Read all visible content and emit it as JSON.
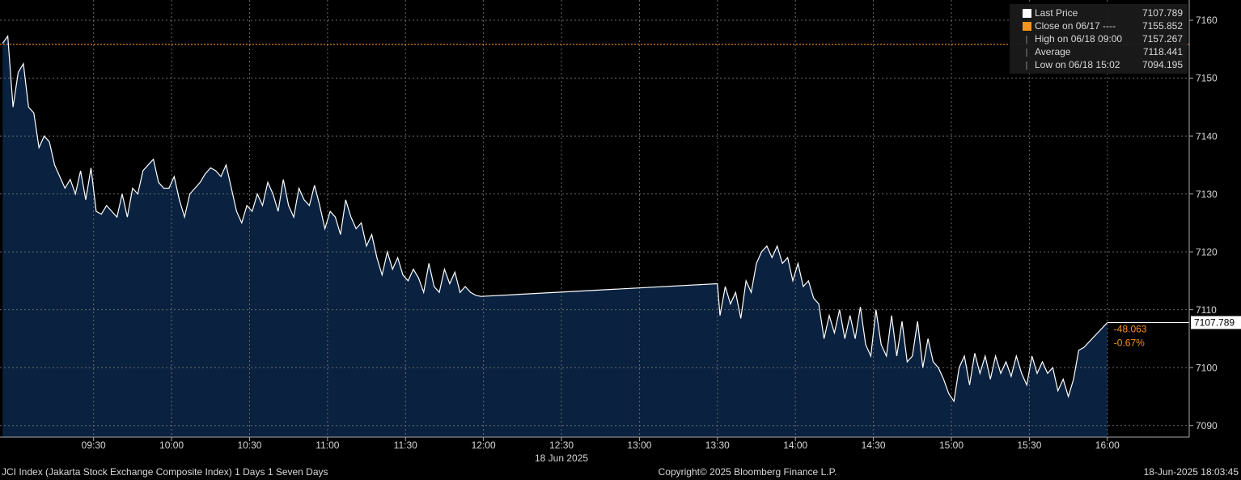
{
  "chart_data": {
    "type": "area",
    "title": "JCI Index (Jakarta Stock Exchange Composite Index) 1 Days 1 Seven Days",
    "date_label": "18 Jun 2025",
    "copyright": "Copyright© 2025 Bloomberg Finance L.P.",
    "timestamp": "18-Jun-2025 18:03:45",
    "x": [
      535,
      537,
      539,
      541,
      543,
      545,
      547,
      549,
      551,
      553,
      555,
      557,
      559,
      561,
      563,
      565,
      567,
      569,
      571,
      573,
      575,
      577,
      579,
      581,
      583,
      585,
      587,
      589,
      591,
      593,
      595,
      597,
      599,
      601,
      603,
      605,
      607,
      609,
      611,
      613,
      615,
      617,
      619,
      621,
      623,
      625,
      627,
      629,
      631,
      633,
      635,
      637,
      639,
      641,
      643,
      645,
      647,
      649,
      651,
      653,
      655,
      657,
      659,
      661,
      663,
      665,
      667,
      669,
      671,
      673,
      675,
      677,
      679,
      681,
      683,
      685,
      687,
      689,
      691,
      693,
      695,
      697,
      699,
      701,
      703,
      705,
      707,
      709,
      711,
      713,
      715,
      717,
      719,
      810,
      811,
      813,
      815,
      817,
      819,
      821,
      823,
      825,
      827,
      829,
      831,
      833,
      835,
      837,
      839,
      841,
      843,
      845,
      847,
      849,
      851,
      853,
      855,
      857,
      859,
      861,
      863,
      865,
      867,
      869,
      871,
      873,
      875,
      877,
      879,
      881,
      883,
      885,
      887,
      889,
      891,
      893,
      895,
      897,
      899,
      901,
      903,
      905,
      907,
      909,
      911,
      913,
      915,
      917,
      919,
      921,
      923,
      925,
      927,
      929,
      931,
      933,
      935,
      937,
      939,
      941,
      943,
      945,
      947,
      949,
      951,
      960
    ],
    "series": [
      {
        "name": "Last Price",
        "color": "#ffffff",
        "fill": "#0a2240",
        "values": [
          7156,
          7157.267,
          7145,
          7151,
          7152.5,
          7145,
          7144,
          7138,
          7140,
          7139,
          7135,
          7133,
          7131,
          7132.5,
          7130,
          7134,
          7129,
          7134.5,
          7127,
          7126.5,
          7128,
          7127,
          7126,
          7130,
          7126,
          7131,
          7130,
          7134,
          7135,
          7136,
          7132,
          7131,
          7131,
          7133,
          7129,
          7126,
          7130,
          7131,
          7132,
          7133.5,
          7134.5,
          7134,
          7133,
          7135,
          7131,
          7127,
          7125,
          7128,
          7127,
          7130,
          7128,
          7132,
          7130,
          7127,
          7132.5,
          7128,
          7126,
          7131,
          7129,
          7128,
          7131.5,
          7128,
          7124,
          7127,
          7126,
          7123,
          7129,
          7126,
          7124,
          7125,
          7121,
          7123,
          7119,
          7116,
          7120,
          7117,
          7119,
          7116,
          7115,
          7117,
          7115.5,
          7113,
          7118,
          7114,
          7113,
          7117,
          7114.5,
          7116.5,
          7113,
          7114,
          7113,
          7112.5,
          7112.3,
          7114.5,
          7109,
          7114,
          7111,
          7113,
          7108.5,
          7115,
          7113,
          7118,
          7120,
          7121,
          7119,
          7121,
          7118,
          7119,
          7115,
          7118,
          7114,
          7115,
          7112,
          7111,
          7105,
          7109,
          7106,
          7110,
          7105,
          7109,
          7105,
          7110.5,
          7104,
          7102,
          7110,
          7104,
          7102,
          7109,
          7102,
          7108,
          7101,
          7102,
          7108,
          7100,
          7105,
          7101,
          7100,
          7098,
          7095.5,
          7094.195,
          7100,
          7102,
          7097,
          7102.5,
          7099,
          7102,
          7098,
          7102,
          7099,
          7101,
          7098.5,
          7102,
          7099,
          7097,
          7102,
          7099,
          7101,
          7099,
          7100,
          7096,
          7098,
          7095,
          7098,
          7103,
          7103.5,
          7107.789
        ]
      }
    ],
    "stats": [
      {
        "name": "Close on 06/17 ----",
        "value": 7155.852,
        "color": "#f7931e"
      },
      {
        "name": "High on 06/18 09:00",
        "value": 7157.267
      },
      {
        "name": "Average",
        "value": 7118.441
      },
      {
        "name": "Low on 06/18 15:02",
        "value": 7094.195
      }
    ],
    "change": -48.063,
    "change_pct": "-0.67%",
    "change_color": "#f7931e",
    "xlim": [
      534,
      991.5
    ],
    "xticks": [
      {
        "value": 570,
        "label": "09:30"
      },
      {
        "value": 600,
        "label": "10:00"
      },
      {
        "value": 630,
        "label": "10:30"
      },
      {
        "value": 660,
        "label": "11:00"
      },
      {
        "value": 690,
        "label": "11:30"
      },
      {
        "value": 720,
        "label": "12:00"
      },
      {
        "value": 750,
        "label": "12:30"
      },
      {
        "value": 780,
        "label": "13:00"
      },
      {
        "value": 810,
        "label": "13:30"
      },
      {
        "value": 840,
        "label": "14:00"
      },
      {
        "value": 870,
        "label": "14:30"
      },
      {
        "value": 900,
        "label": "15:00"
      },
      {
        "value": 930,
        "label": "15:30"
      },
      {
        "value": 960,
        "label": "16:00"
      }
    ],
    "ylim": [
      7088,
      7163.5
    ],
    "yticks": [
      7090,
      7100,
      7110,
      7120,
      7130,
      7140,
      7150,
      7160
    ],
    "grid": true
  }
}
